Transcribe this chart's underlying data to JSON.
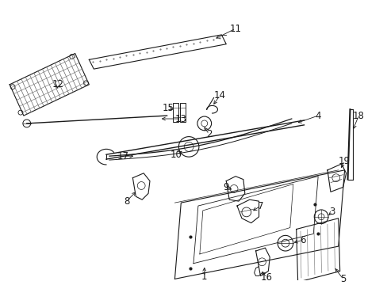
{
  "background_color": "#ffffff",
  "fig_width": 4.89,
  "fig_height": 3.6,
  "dpi": 100,
  "dark": "#1a1a1a",
  "gray": "#666666",
  "light_gray": "#aaaaaa",
  "label_fs": 8.5
}
